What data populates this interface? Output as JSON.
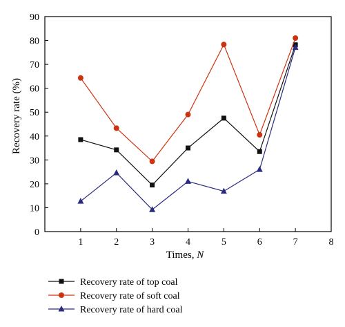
{
  "chart_data": {
    "type": "line",
    "x": [
      1,
      2,
      3,
      4,
      5,
      6,
      7
    ],
    "series": [
      {
        "name": "Recovery rate of top coal",
        "color": "#111111",
        "marker": "square",
        "values": [
          38.5,
          34.2,
          19.5,
          35.0,
          47.5,
          33.5,
          78.2
        ]
      },
      {
        "name": "Recovery rate of soft coal",
        "color": "#cc3311",
        "marker": "circle",
        "values": [
          64.3,
          43.3,
          29.4,
          49.0,
          78.3,
          40.5,
          81.0
        ]
      },
      {
        "name": "Recovery rate of hard coal",
        "color": "#2a2a80",
        "marker": "triangle",
        "values": [
          12.7,
          24.6,
          9.2,
          21.0,
          16.9,
          26.0,
          77.1
        ]
      }
    ],
    "xlabel_main": "Times, ",
    "xlabel_var": "N",
    "ylabel": "Recovery rate (%)",
    "xlim": [
      0,
      8
    ],
    "ylim": [
      0,
      90
    ],
    "xticks": [
      1,
      2,
      3,
      4,
      5,
      6,
      7,
      8
    ],
    "yticks": [
      0,
      10,
      20,
      30,
      40,
      50,
      60,
      70,
      80,
      90
    ],
    "grid": false,
    "legend_position": "bottom"
  }
}
